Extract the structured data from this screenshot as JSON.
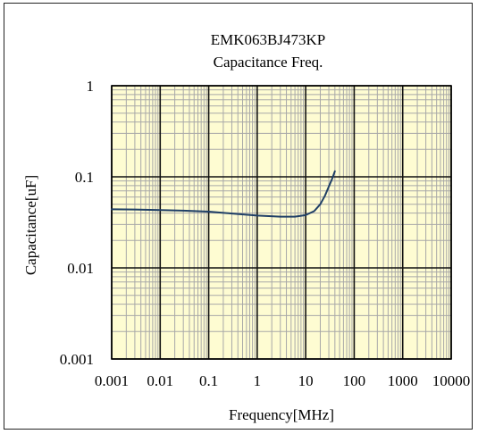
{
  "chart_data": {
    "type": "line",
    "title": "EMK063BJ473KP",
    "subtitle": "Capacitance Freq.",
    "xlabel": "Frequency[MHz]",
    "ylabel": "Capacitance[uF]",
    "x_scale": "log",
    "y_scale": "log",
    "xlim": [
      0.001,
      10000
    ],
    "ylim": [
      0.001,
      1
    ],
    "x_ticks": [
      "0.001",
      "0.01",
      "0.1",
      "1",
      "10",
      "100",
      "1000",
      "10000"
    ],
    "y_ticks": [
      "0.001",
      "0.01",
      "0.1",
      "1"
    ],
    "grid": true,
    "plot_background": "#fefcd2",
    "major_grid_color": "#111111",
    "minor_grid_color": "#a8a8a8",
    "series": [
      {
        "color": "#1f3f66",
        "x": [
          0.001,
          0.003,
          0.01,
          0.03,
          0.1,
          0.3,
          1,
          3,
          6,
          10,
          15,
          20,
          25,
          30,
          35,
          40
        ],
        "y": [
          0.044,
          0.0438,
          0.0432,
          0.0425,
          0.0415,
          0.0395,
          0.0375,
          0.0365,
          0.0365,
          0.038,
          0.042,
          0.05,
          0.062,
          0.078,
          0.095,
          0.115
        ]
      }
    ]
  }
}
